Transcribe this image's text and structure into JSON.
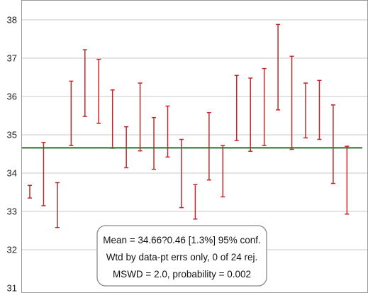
{
  "chart_data": {
    "type": "error-bar",
    "ylim": [
      31,
      38.3
    ],
    "grid": true,
    "yticks": [
      "31",
      "32",
      "33",
      "34",
      "35",
      "36",
      "37",
      "38"
    ],
    "points": [
      {
        "low": 33.35,
        "high": 33.68
      },
      {
        "low": 33.15,
        "high": 34.8
      },
      {
        "low": 32.58,
        "high": 33.75
      },
      {
        "low": 34.72,
        "high": 36.4
      },
      {
        "low": 35.48,
        "high": 37.22
      },
      {
        "low": 35.3,
        "high": 36.97
      },
      {
        "low": 34.65,
        "high": 36.17
      },
      {
        "low": 34.14,
        "high": 35.21
      },
      {
        "low": 34.58,
        "high": 36.35
      },
      {
        "low": 34.1,
        "high": 35.45
      },
      {
        "low": 34.42,
        "high": 35.75
      },
      {
        "low": 33.1,
        "high": 34.88
      },
      {
        "low": 32.8,
        "high": 33.7
      },
      {
        "low": 33.82,
        "high": 35.58
      },
      {
        "low": 33.38,
        "high": 34.72
      },
      {
        "low": 34.85,
        "high": 36.55
      },
      {
        "low": 34.57,
        "high": 36.48
      },
      {
        "low": 34.72,
        "high": 36.73
      },
      {
        "low": 35.65,
        "high": 37.88
      },
      {
        "low": 34.62,
        "high": 37.05
      },
      {
        "low": 34.92,
        "high": 36.35
      },
      {
        "low": 34.88,
        "high": 36.42
      },
      {
        "low": 33.73,
        "high": 35.78
      },
      {
        "low": 32.93,
        "high": 34.7
      }
    ],
    "mean": 34.66,
    "stats_lines": [
      "Mean = 34.66?0.46  [1.3%]  95% conf.",
      "Wtd by data-pt errs only, 0 of 24 rej.",
      "MSWD = 2.0, probability = 0.002"
    ],
    "colors": {
      "bars": "#c0282a",
      "mean_line": "#2e6b2e",
      "grid": "#c8c8c8"
    }
  }
}
